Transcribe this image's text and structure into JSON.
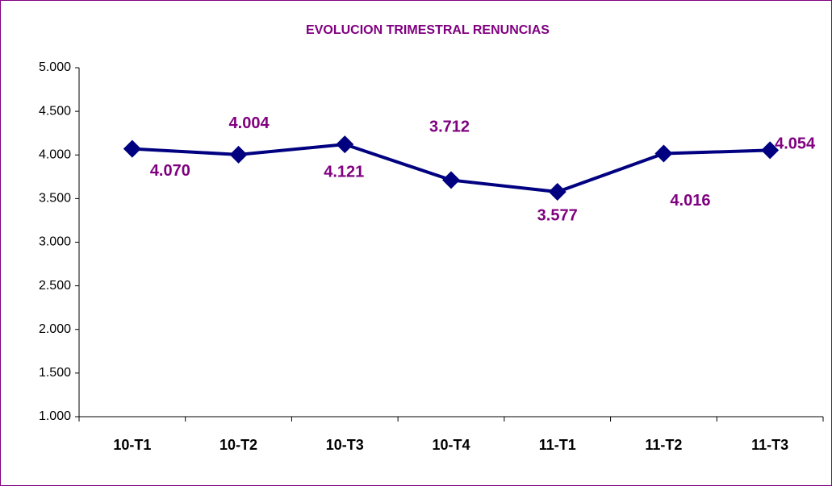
{
  "chart_data": {
    "type": "line",
    "title": "EVOLUCION TRIMESTRAL RENUNCIAS",
    "categories": [
      "10-T1",
      "10-T2",
      "10-T3",
      "10-T4",
      "11-T1",
      "11-T2",
      "11-T3"
    ],
    "series": [
      {
        "name": "Renuncias",
        "color": "#000080",
        "values": [
          4070,
          4004,
          4121,
          3712,
          3577,
          4016,
          4054
        ],
        "value_labels": [
          "4.070",
          "4.004",
          "4.121",
          "3.712",
          "3.577",
          "4.016",
          "4.054"
        ],
        "label_color": "#800080"
      }
    ],
    "ylim": [
      1000,
      5000
    ],
    "yticks": [
      {
        "value": 1000,
        "label": "1.000"
      },
      {
        "value": 1500,
        "label": "1.500"
      },
      {
        "value": 2000,
        "label": "2.000"
      },
      {
        "value": 2500,
        "label": "2.500"
      },
      {
        "value": 3000,
        "label": "3.000"
      },
      {
        "value": 3500,
        "label": "3.500"
      },
      {
        "value": 4000,
        "label": "4.000"
      },
      {
        "value": 4500,
        "label": "4.500"
      },
      {
        "value": 5000,
        "label": "5.000"
      }
    ],
    "grid": false
  }
}
